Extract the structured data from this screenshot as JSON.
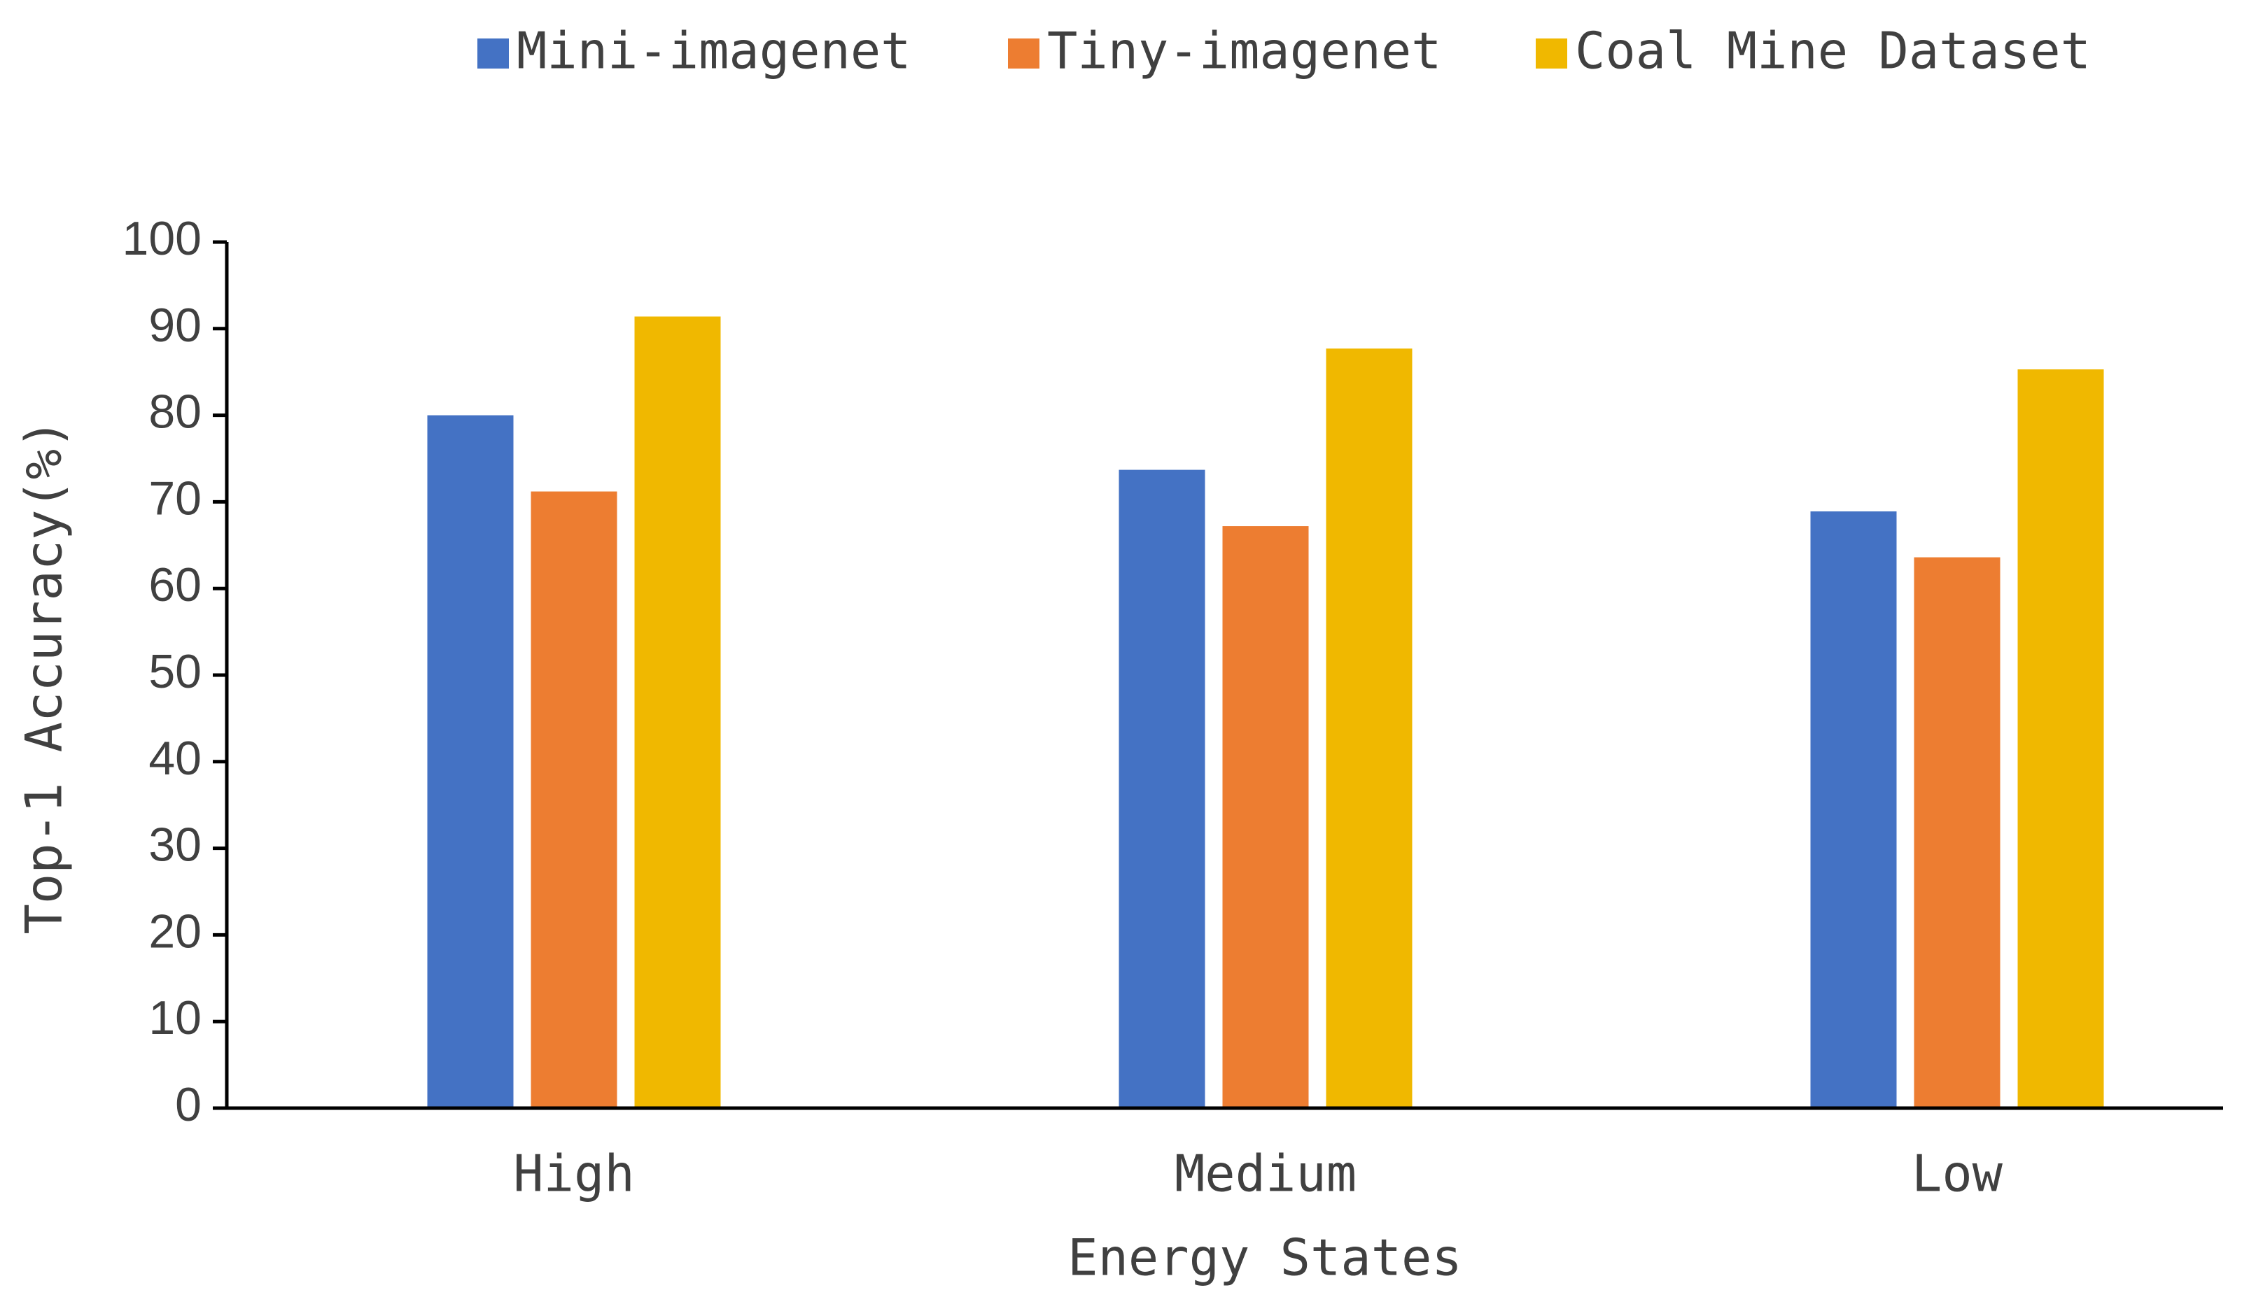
{
  "chart_data": {
    "type": "bar",
    "x_label": "Energy States",
    "y_label": "Top-1 Accuracy(%)",
    "categories": [
      "High",
      "Medium",
      "Low"
    ],
    "series": [
      {
        "name": "Mini-imagenet",
        "color": "#4472c4",
        "values": [
          80.0,
          73.7,
          68.9
        ]
      },
      {
        "name": "Tiny-imagenet",
        "color": "#ed7d31",
        "values": [
          71.2,
          67.2,
          63.6
        ]
      },
      {
        "name": "Coal Mine Dataset",
        "color": "#f0b800",
        "values": [
          91.4,
          87.7,
          85.3
        ]
      }
    ],
    "ylim": [
      0,
      100
    ],
    "yticks": [
      0,
      10,
      20,
      30,
      40,
      50,
      60,
      70,
      80,
      90,
      100
    ],
    "legend": "top"
  }
}
